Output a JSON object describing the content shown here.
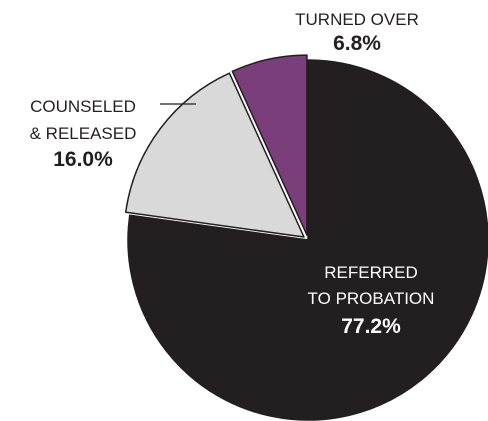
{
  "chart_data": {
    "type": "pie",
    "title": "",
    "slices": [
      {
        "label_lines": [
          "REFERRED",
          "TO PROBATION"
        ],
        "value": 77.2,
        "value_label": "77.2%",
        "color": "#231f20"
      },
      {
        "label_lines": [
          "COUNSELED",
          "& RELEASED"
        ],
        "value": 16.0,
        "value_label": "16.0%",
        "color": "#d9d9d9"
      },
      {
        "label_lines": [
          "TURNED OVER"
        ],
        "value": 6.8,
        "value_label": "6.8%",
        "color": "#7a3f7a"
      }
    ],
    "exploded": [
      "COUNSELED & RELEASED",
      "TURNED OVER"
    ],
    "legend": "none"
  }
}
